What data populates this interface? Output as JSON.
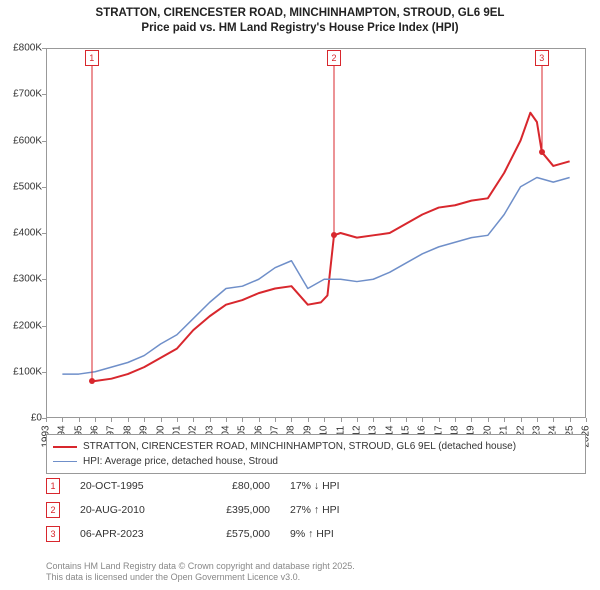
{
  "title": {
    "line1": "STRATTON, CIRENCESTER ROAD, MINCHINHAMPTON, STROUD, GL6 9EL",
    "line2": "Price paid vs. HM Land Registry's House Price Index (HPI)"
  },
  "chart": {
    "type": "line",
    "background_color": "#ffffff",
    "border_color": "#999999",
    "xlim": [
      1993,
      2026
    ],
    "ylim": [
      0,
      800
    ],
    "yticks": [
      0,
      100,
      200,
      300,
      400,
      500,
      600,
      700,
      800
    ],
    "ytick_labels": [
      "£0",
      "£100K",
      "£200K",
      "£300K",
      "£400K",
      "£500K",
      "£600K",
      "£700K",
      "£800K"
    ],
    "ytick_fontsize": 10,
    "xticks": [
      1993,
      1994,
      1995,
      1996,
      1997,
      1998,
      1999,
      2000,
      2001,
      2002,
      2003,
      2004,
      2005,
      2006,
      2007,
      2008,
      2009,
      2010,
      2011,
      2012,
      2013,
      2014,
      2015,
      2016,
      2017,
      2018,
      2019,
      2020,
      2021,
      2022,
      2023,
      2024,
      2025,
      2026
    ],
    "xtick_fontsize": 10,
    "series": [
      {
        "name": "price_paid",
        "label": "STRATTON, CIRENCESTER ROAD, MINCHINHAMPTON, STROUD, GL6 9EL (detached house)",
        "color": "#d8272d",
        "line_width": 2,
        "x": [
          1995.8,
          1996,
          1997,
          1998,
          1999,
          2000,
          2001,
          2002,
          2003,
          2004,
          2005,
          2006,
          2007,
          2008,
          2009,
          2009.8,
          2010.2,
          2010.6,
          2011,
          2012,
          2013,
          2014,
          2015,
          2016,
          2017,
          2018,
          2019,
          2020,
          2021,
          2022,
          2022.6,
          2023.0,
          2023.3,
          2024,
          2025
        ],
        "y": [
          80,
          80,
          85,
          95,
          110,
          130,
          150,
          190,
          220,
          245,
          255,
          270,
          280,
          285,
          245,
          250,
          265,
          395,
          400,
          390,
          395,
          400,
          420,
          440,
          455,
          460,
          470,
          475,
          530,
          600,
          660,
          640,
          575,
          545,
          555
        ]
      },
      {
        "name": "hpi",
        "label": "HPI: Average price, detached house, Stroud",
        "color": "#6f8fc9",
        "line_width": 1.5,
        "x": [
          1994,
          1995,
          1996,
          1997,
          1998,
          1999,
          2000,
          2001,
          2002,
          2003,
          2004,
          2005,
          2006,
          2007,
          2008,
          2009,
          2010,
          2011,
          2012,
          2013,
          2014,
          2015,
          2016,
          2017,
          2018,
          2019,
          2020,
          2021,
          2022,
          2023,
          2024,
          2025
        ],
        "y": [
          95,
          95,
          100,
          110,
          120,
          135,
          160,
          180,
          215,
          250,
          280,
          285,
          300,
          325,
          340,
          280,
          300,
          300,
          295,
          300,
          315,
          335,
          355,
          370,
          380,
          390,
          395,
          440,
          500,
          520,
          510,
          520
        ]
      }
    ],
    "markers": [
      {
        "id": "1",
        "x": 1995.8,
        "y": 80
      },
      {
        "id": "2",
        "x": 2010.6,
        "y": 395
      },
      {
        "id": "3",
        "x": 2023.3,
        "y": 575
      }
    ]
  },
  "legend": {
    "items": [
      {
        "color": "#d8272d",
        "width": 2,
        "label": "STRATTON, CIRENCESTER ROAD, MINCHINHAMPTON, STROUD, GL6 9EL (detached house)"
      },
      {
        "color": "#6f8fc9",
        "width": 1.5,
        "label": "HPI: Average price, detached house, Stroud"
      }
    ]
  },
  "events": [
    {
      "id": "1",
      "date": "20-OCT-1995",
      "price": "£80,000",
      "delta": "17% ↓ HPI"
    },
    {
      "id": "2",
      "date": "20-AUG-2010",
      "price": "£395,000",
      "delta": "27% ↑ HPI"
    },
    {
      "id": "3",
      "date": "06-APR-2023",
      "price": "£575,000",
      "delta": "9% ↑ HPI"
    }
  ],
  "footer": {
    "line1": "Contains HM Land Registry data © Crown copyright and database right 2025.",
    "line2": "This data is licensed under the Open Government Licence v3.0."
  }
}
